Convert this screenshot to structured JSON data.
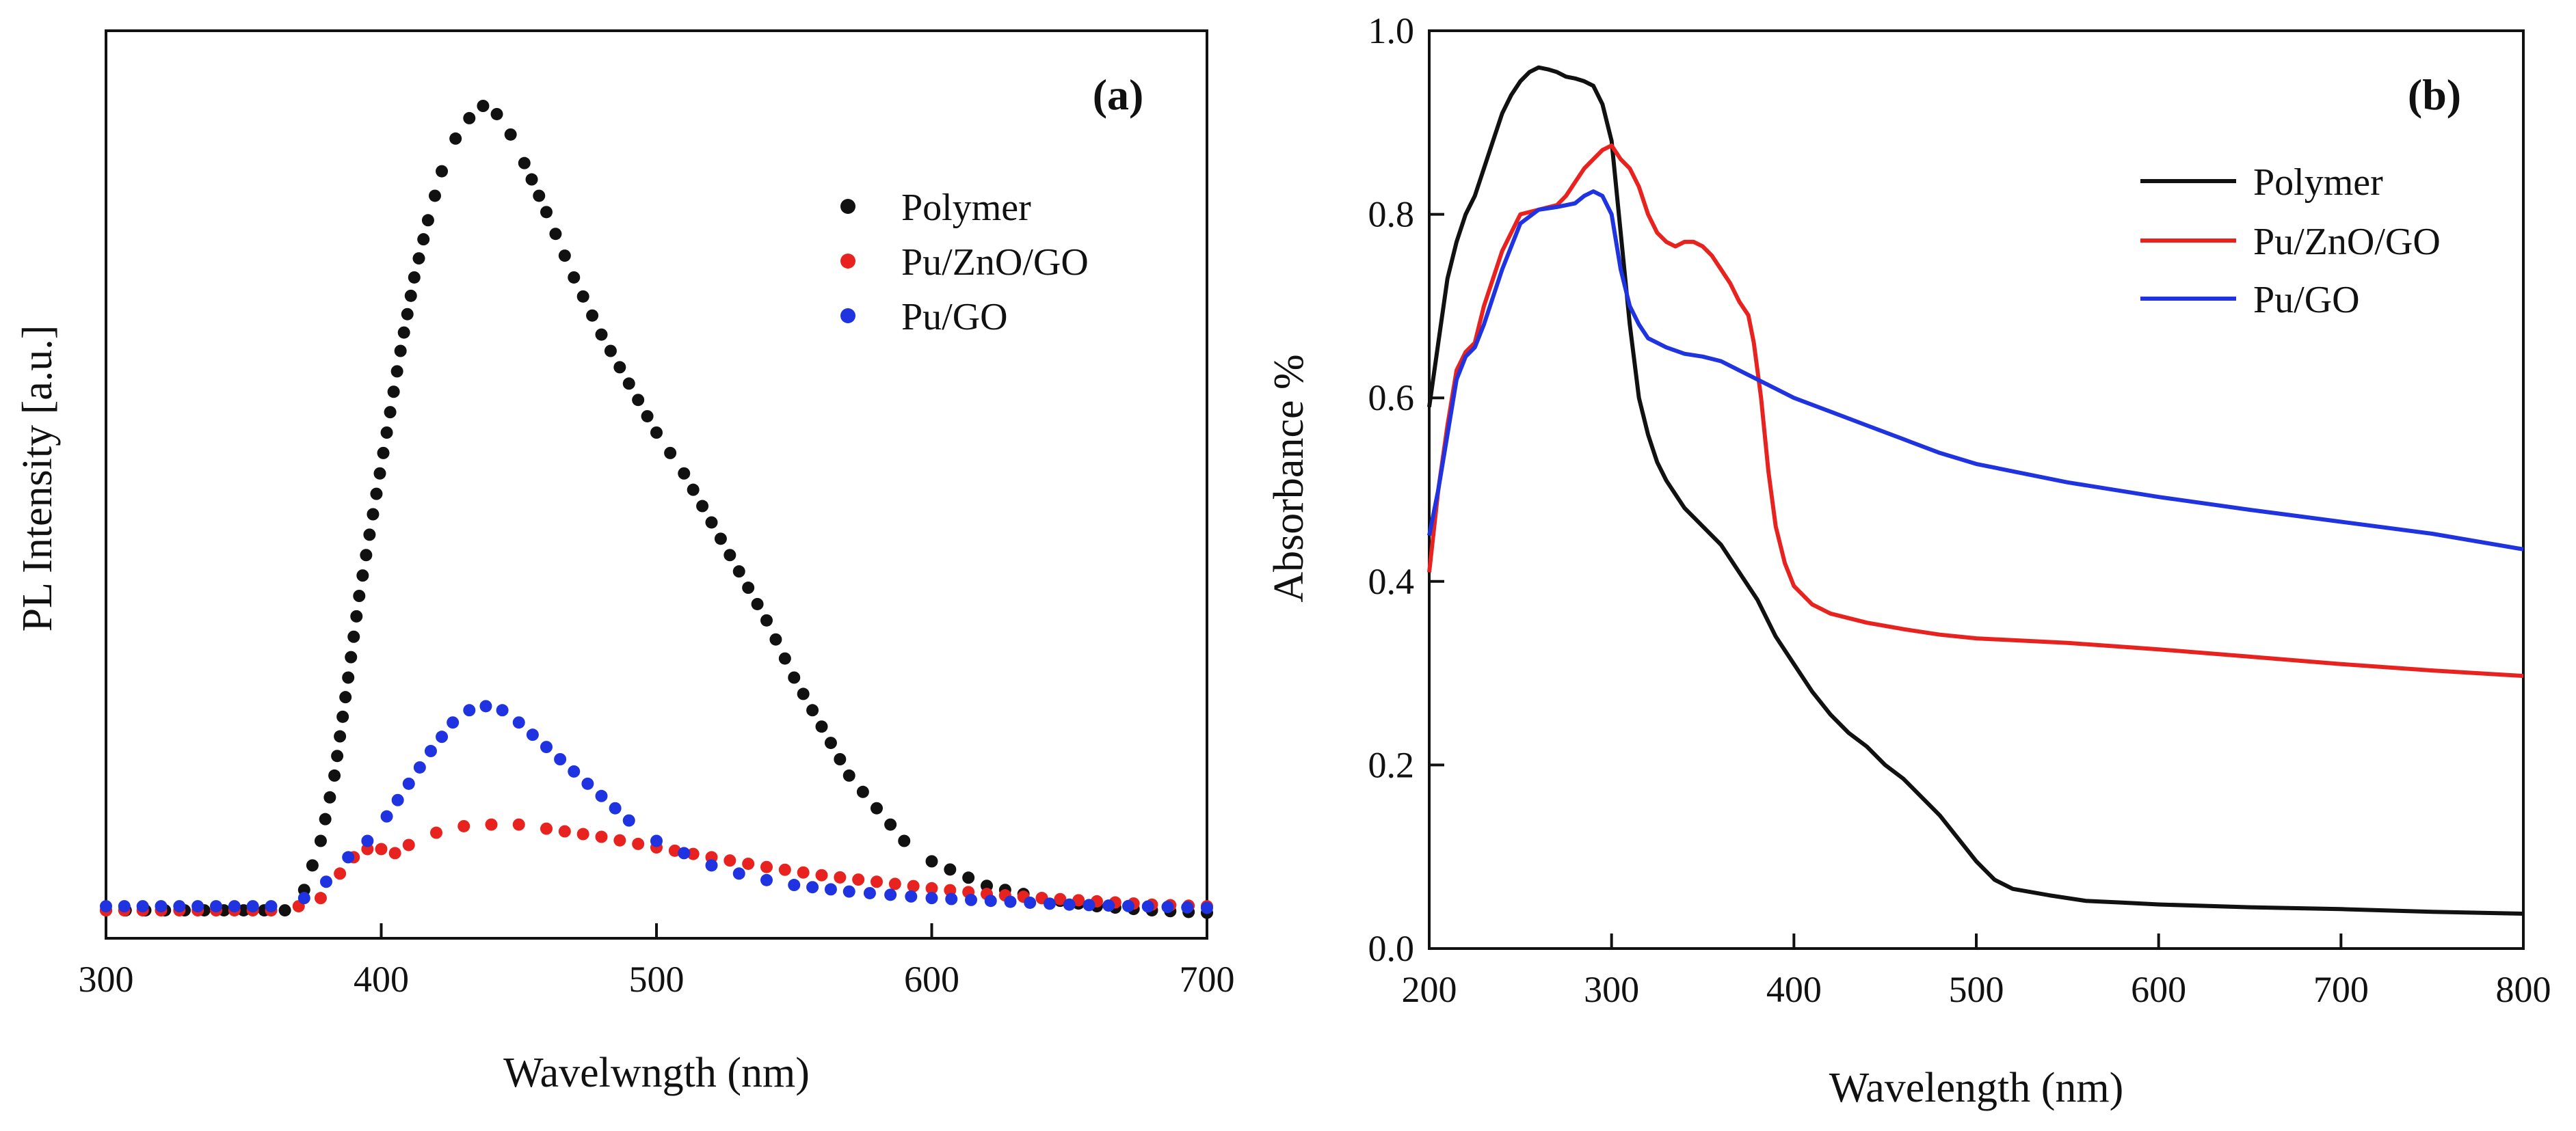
{
  "chart_data": [
    {
      "type": "scatter",
      "panel_label": "(a)",
      "title": "",
      "xlabel": "Wavelwngth (nm)",
      "ylabel": "PL Intensity [a.u.]",
      "xlim": [
        300,
        700
      ],
      "ylim": [
        0,
        1.0
      ],
      "xticks": [
        300,
        400,
        500,
        600,
        700
      ],
      "show_y_tick_labels": false,
      "grid": false,
      "legend_position": "top-right",
      "series": [
        {
          "name": "Polymer",
          "color": "#111111",
          "marker": "circle",
          "points": [
            [
              300,
              0.015
            ],
            [
              350,
              0.015
            ],
            [
              365,
              0.015
            ],
            [
              372,
              0.04
            ],
            [
              378,
              0.1
            ],
            [
              383,
              0.18
            ],
            [
              388,
              0.3
            ],
            [
              392,
              0.4
            ],
            [
              397,
              0.5
            ],
            [
              402,
              0.6
            ],
            [
              407,
              0.7
            ],
            [
              412,
              0.79
            ],
            [
              417,
              0.86
            ],
            [
              422,
              0.92
            ],
            [
              427,
              0.96
            ],
            [
              432,
              0.985
            ],
            [
              437,
              1.0
            ],
            [
              442,
              0.99
            ],
            [
              447,
              0.965
            ],
            [
              452,
              0.93
            ],
            [
              460,
              0.87
            ],
            [
              470,
              0.79
            ],
            [
              480,
              0.72
            ],
            [
              490,
              0.66
            ],
            [
              500,
              0.6
            ],
            [
              510,
              0.55
            ],
            [
              520,
              0.49
            ],
            [
              530,
              0.43
            ],
            [
              540,
              0.37
            ],
            [
              550,
              0.3
            ],
            [
              560,
              0.24
            ],
            [
              570,
              0.18
            ],
            [
              580,
              0.14
            ],
            [
              590,
              0.1
            ],
            [
              600,
              0.075
            ],
            [
              620,
              0.045
            ],
            [
              640,
              0.03
            ],
            [
              660,
              0.02
            ],
            [
              680,
              0.015
            ],
            [
              700,
              0.012
            ]
          ]
        },
        {
          "name": "Pu/ZnO/GO",
          "color": "#e8231f",
          "marker": "circle",
          "points": [
            [
              300,
              0.015
            ],
            [
              360,
              0.015
            ],
            [
              370,
              0.02
            ],
            [
              378,
              0.03
            ],
            [
              385,
              0.06
            ],
            [
              390,
              0.08
            ],
            [
              395,
              0.09
            ],
            [
              400,
              0.09
            ],
            [
              405,
              0.085
            ],
            [
              410,
              0.095
            ],
            [
              420,
              0.11
            ],
            [
              430,
              0.118
            ],
            [
              440,
              0.12
            ],
            [
              450,
              0.12
            ],
            [
              460,
              0.115
            ],
            [
              480,
              0.105
            ],
            [
              500,
              0.092
            ],
            [
              520,
              0.08
            ],
            [
              540,
              0.068
            ],
            [
              560,
              0.058
            ],
            [
              580,
              0.05
            ],
            [
              600,
              0.042
            ],
            [
              620,
              0.035
            ],
            [
              640,
              0.03
            ],
            [
              660,
              0.026
            ],
            [
              680,
              0.022
            ],
            [
              700,
              0.02
            ]
          ]
        },
        {
          "name": "Pu/GO",
          "color": "#1f33e0",
          "marker": "circle",
          "points": [
            [
              300,
              0.02
            ],
            [
              360,
              0.02
            ],
            [
              372,
              0.03
            ],
            [
              380,
              0.05
            ],
            [
              388,
              0.08
            ],
            [
              395,
              0.1
            ],
            [
              402,
              0.13
            ],
            [
              410,
              0.17
            ],
            [
              418,
              0.21
            ],
            [
              426,
              0.245
            ],
            [
              432,
              0.26
            ],
            [
              438,
              0.265
            ],
            [
              444,
              0.26
            ],
            [
              450,
              0.245
            ],
            [
              460,
              0.215
            ],
            [
              470,
              0.185
            ],
            [
              480,
              0.155
            ],
            [
              490,
              0.125
            ],
            [
              500,
              0.1
            ],
            [
              510,
              0.085
            ],
            [
              520,
              0.07
            ],
            [
              530,
              0.06
            ],
            [
              540,
              0.052
            ],
            [
              550,
              0.046
            ],
            [
              570,
              0.038
            ],
            [
              600,
              0.03
            ],
            [
              650,
              0.022
            ],
            [
              700,
              0.018
            ]
          ]
        }
      ]
    },
    {
      "type": "line",
      "panel_label": "(b)",
      "title": "",
      "xlabel": "Wavelength (nm)",
      "ylabel": "Absorbance  %",
      "xlim": [
        200,
        800
      ],
      "ylim": [
        0.0,
        1.0
      ],
      "xticks": [
        200,
        300,
        400,
        500,
        600,
        700,
        800
      ],
      "yticks": [
        0.0,
        0.2,
        0.4,
        0.6,
        0.8,
        1.0
      ],
      "xtick_labels": [
        "200",
        "300",
        "400",
        "500",
        "600",
        "700",
        "800"
      ],
      "ytick_labels": [
        "0.0",
        "0.2",
        "0.4",
        "0.6",
        "0.8",
        "1.0"
      ],
      "grid": false,
      "legend_position": "top-right",
      "series": [
        {
          "name": "Polymer",
          "color": "#111111",
          "points": [
            [
              200,
              0.59
            ],
            [
              205,
              0.66
            ],
            [
              210,
              0.73
            ],
            [
              215,
              0.77
            ],
            [
              220,
              0.8
            ],
            [
              225,
              0.82
            ],
            [
              230,
              0.85
            ],
            [
              235,
              0.88
            ],
            [
              240,
              0.91
            ],
            [
              245,
              0.93
            ],
            [
              250,
              0.945
            ],
            [
              255,
              0.955
            ],
            [
              260,
              0.96
            ],
            [
              265,
              0.958
            ],
            [
              270,
              0.955
            ],
            [
              275,
              0.95
            ],
            [
              280,
              0.948
            ],
            [
              285,
              0.945
            ],
            [
              290,
              0.94
            ],
            [
              295,
              0.92
            ],
            [
              300,
              0.88
            ],
            [
              305,
              0.78
            ],
            [
              310,
              0.68
            ],
            [
              315,
              0.6
            ],
            [
              320,
              0.56
            ],
            [
              325,
              0.53
            ],
            [
              330,
              0.51
            ],
            [
              340,
              0.48
            ],
            [
              350,
              0.46
            ],
            [
              360,
              0.44
            ],
            [
              370,
              0.41
            ],
            [
              380,
              0.38
            ],
            [
              390,
              0.34
            ],
            [
              400,
              0.31
            ],
            [
              410,
              0.28
            ],
            [
              420,
              0.255
            ],
            [
              430,
              0.235
            ],
            [
              440,
              0.22
            ],
            [
              450,
              0.2
            ],
            [
              460,
              0.185
            ],
            [
              470,
              0.165
            ],
            [
              480,
              0.145
            ],
            [
              490,
              0.12
            ],
            [
              500,
              0.095
            ],
            [
              510,
              0.075
            ],
            [
              520,
              0.065
            ],
            [
              540,
              0.058
            ],
            [
              560,
              0.052
            ],
            [
              580,
              0.05
            ],
            [
              600,
              0.048
            ],
            [
              650,
              0.045
            ],
            [
              700,
              0.043
            ],
            [
              750,
              0.04
            ],
            [
              800,
              0.038
            ]
          ]
        },
        {
          "name": "Pu/ZnO/GO",
          "color": "#e8231f",
          "points": [
            [
              200,
              0.41
            ],
            [
              205,
              0.5
            ],
            [
              210,
              0.57
            ],
            [
              215,
              0.63
            ],
            [
              220,
              0.65
            ],
            [
              225,
              0.66
            ],
            [
              230,
              0.7
            ],
            [
              240,
              0.76
            ],
            [
              250,
              0.8
            ],
            [
              260,
              0.805
            ],
            [
              270,
              0.81
            ],
            [
              275,
              0.82
            ],
            [
              280,
              0.835
            ],
            [
              285,
              0.85
            ],
            [
              290,
              0.86
            ],
            [
              295,
              0.87
            ],
            [
              300,
              0.875
            ],
            [
              305,
              0.86
            ],
            [
              310,
              0.85
            ],
            [
              315,
              0.83
            ],
            [
              320,
              0.8
            ],
            [
              325,
              0.78
            ],
            [
              330,
              0.77
            ],
            [
              335,
              0.765
            ],
            [
              340,
              0.77
            ],
            [
              345,
              0.77
            ],
            [
              350,
              0.765
            ],
            [
              355,
              0.755
            ],
            [
              360,
              0.74
            ],
            [
              365,
              0.725
            ],
            [
              370,
              0.705
            ],
            [
              375,
              0.69
            ],
            [
              378,
              0.66
            ],
            [
              382,
              0.6
            ],
            [
              386,
              0.52
            ],
            [
              390,
              0.46
            ],
            [
              395,
              0.42
            ],
            [
              400,
              0.395
            ],
            [
              410,
              0.375
            ],
            [
              420,
              0.365
            ],
            [
              440,
              0.355
            ],
            [
              460,
              0.348
            ],
            [
              480,
              0.342
            ],
            [
              500,
              0.338
            ],
            [
              550,
              0.333
            ],
            [
              600,
              0.326
            ],
            [
              650,
              0.318
            ],
            [
              700,
              0.31
            ],
            [
              750,
              0.303
            ],
            [
              800,
              0.297
            ]
          ]
        },
        {
          "name": "Pu/GO",
          "color": "#1f33e0",
          "points": [
            [
              200,
              0.45
            ],
            [
              205,
              0.5
            ],
            [
              210,
              0.56
            ],
            [
              215,
              0.62
            ],
            [
              220,
              0.645
            ],
            [
              225,
              0.655
            ],
            [
              230,
              0.68
            ],
            [
              240,
              0.74
            ],
            [
              250,
              0.79
            ],
            [
              260,
              0.805
            ],
            [
              270,
              0.808
            ],
            [
              280,
              0.812
            ],
            [
              285,
              0.82
            ],
            [
              290,
              0.825
            ],
            [
              295,
              0.82
            ],
            [
              300,
              0.8
            ],
            [
              305,
              0.74
            ],
            [
              310,
              0.7
            ],
            [
              315,
              0.68
            ],
            [
              320,
              0.665
            ],
            [
              330,
              0.655
            ],
            [
              340,
              0.648
            ],
            [
              350,
              0.645
            ],
            [
              360,
              0.64
            ],
            [
              370,
              0.63
            ],
            [
              380,
              0.62
            ],
            [
              400,
              0.6
            ],
            [
              420,
              0.585
            ],
            [
              440,
              0.57
            ],
            [
              460,
              0.555
            ],
            [
              480,
              0.54
            ],
            [
              500,
              0.528
            ],
            [
              550,
              0.508
            ],
            [
              600,
              0.492
            ],
            [
              650,
              0.478
            ],
            [
              700,
              0.465
            ],
            [
              750,
              0.452
            ],
            [
              800,
              0.435
            ]
          ]
        }
      ]
    }
  ]
}
